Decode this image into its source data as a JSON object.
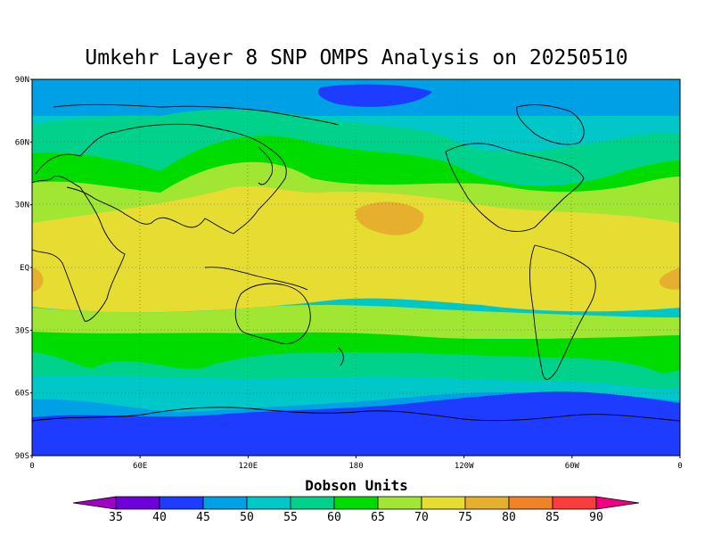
{
  "title": "Umkehr Layer 8 SNP OMPS Analysis on 20250510",
  "lat_labels": [
    "90N",
    "60N",
    "30N",
    "EQ",
    "30S",
    "60S",
    "90S"
  ],
  "lon_labels": [
    "0",
    "60E",
    "120E",
    "180",
    "120W",
    "60W",
    "0"
  ],
  "colorbar": {
    "title": "Dobson Units",
    "levels": [
      "35",
      "40",
      "45",
      "50",
      "55",
      "60",
      "65",
      "70",
      "75",
      "80",
      "85",
      "90"
    ],
    "colors": [
      "#a000c8",
      "#6e00dc",
      "#1e3cff",
      "#00a0e6",
      "#00c8c8",
      "#00d28c",
      "#00dc00",
      "#a0e632",
      "#e6dc32",
      "#e6af2d",
      "#f08228",
      "#fa3c3c",
      "#f00082"
    ]
  },
  "map_data": {
    "type": "contour-filled",
    "projection": "equirectangular",
    "lon_range": [
      0,
      360
    ],
    "lat_range": [
      -90,
      90
    ],
    "units": "Dobson Units",
    "features": [
      "ozone maximum 75-80 DU near 25N 165W",
      "minimum 45 DU over Arctic",
      "minimum 45 DU over Antarctica"
    ]
  }
}
